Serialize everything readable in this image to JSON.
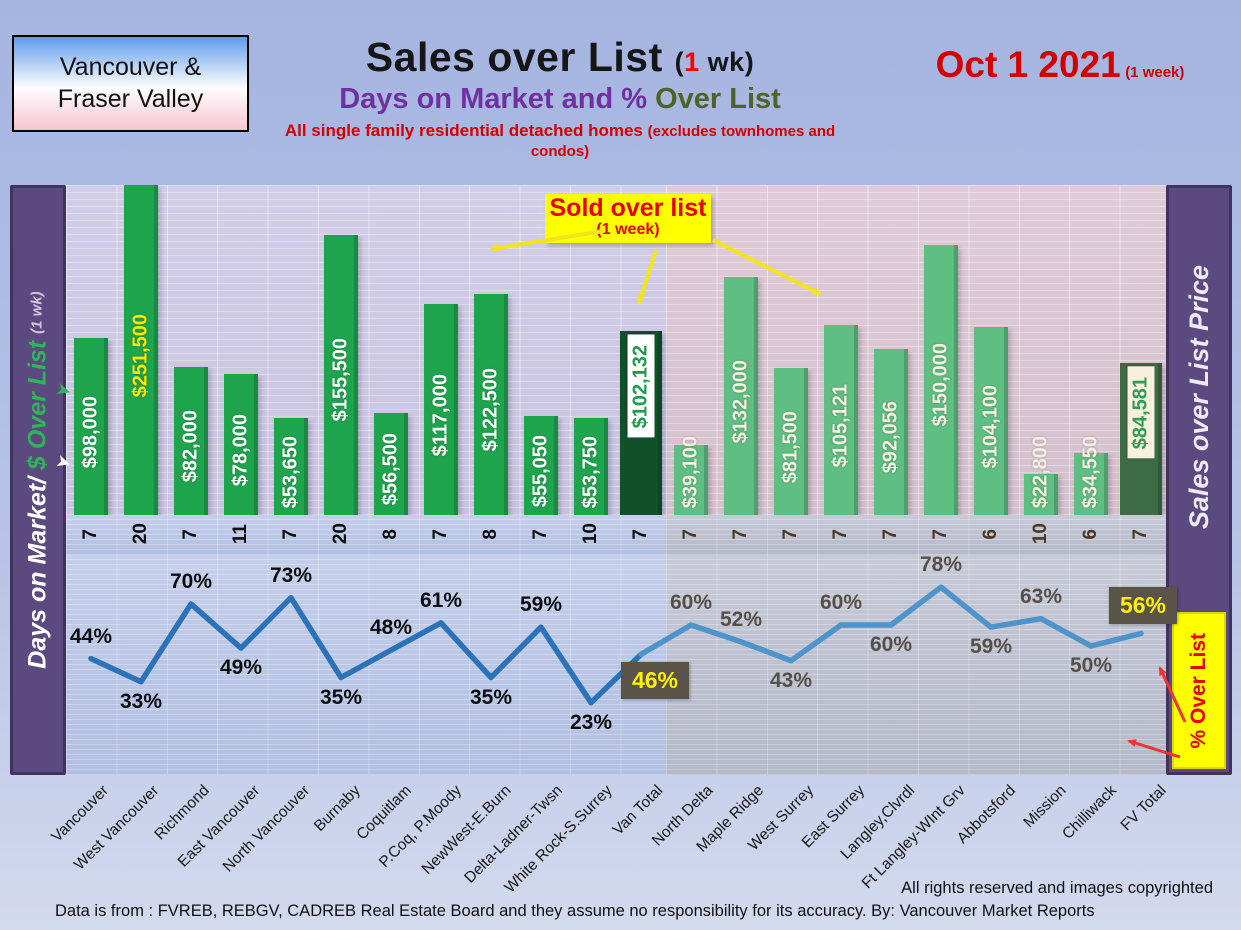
{
  "header": {
    "region_line1": "Vancouver &",
    "region_line2": "Fraser Valley",
    "title": "Sales over List",
    "title_wk_open": "(",
    "title_wk_num": "1",
    "title_wk_rest": " wk)",
    "subtitle_left": "Days on Market and % ",
    "subtitle_right": "Over List",
    "tagline": "All single family residential detached homes ",
    "tagline_paren": "(excludes townhomes and condos)",
    "date": "Oct 1  2021",
    "date_note": "(1 week)"
  },
  "left_axis": {
    "part1": "Days on Market/ ",
    "part2": "$ Over List ",
    "part3": "(1 wk)"
  },
  "right_axis": {
    "label": "Sales over List Price",
    "overlay_label": "% Over List"
  },
  "callout": {
    "line1": "Sold over list",
    "line2": "(1 week)"
  },
  "footer": {
    "rights": "All rights reserved and  images copyrighted",
    "source": "Data is from : FVREB, REBGV, CADREB Real Estate Board and they assume no responsibility for its accuracy. By: Vancouver Market Reports"
  },
  "chart_data": {
    "type": "bar",
    "title": "Sales over List (1 wk) — Days on Market and % Over List",
    "categories": [
      "Vancouver",
      "West Vancouver",
      "Richmond",
      "East Vancouver",
      "North Vancouver",
      "Burnaby",
      "Coquitlam",
      "P.Coq, P.Moody",
      "NewWest-E.Burn",
      "Delta-Ladner-Twsn",
      "White Rock-S.Surrey",
      "Van Total",
      "North Delta",
      "Maple Ridge",
      "West Surrey",
      "East Surrey",
      "Langley,Clvrdl",
      "Ft Langley-WInt Grv",
      "Abbotsford",
      "Mission",
      "Chilliwack",
      "FV Total"
    ],
    "series": [
      {
        "name": "$ Over List",
        "type": "bar",
        "values": [
          98000,
          251500,
          82000,
          78000,
          53650,
          155500,
          56500,
          117000,
          122500,
          55050,
          53750,
          102132,
          39100,
          132000,
          81500,
          105121,
          92056,
          150000,
          104100,
          22800,
          34550,
          84581
        ],
        "labels": [
          "$98,000",
          "$251,500",
          "$82,000",
          "$78,000",
          "$53,650",
          "$155,500",
          "$56,500",
          "$117,000",
          "$122,500",
          "$55,050",
          "$53,750",
          "$102,132",
          "$39,100",
          "$132,000",
          "$81,500",
          "$105,121",
          "$92,056",
          "$150,000",
          "$104,100",
          "$22,800",
          "$34,550",
          "$84,581"
        ],
        "label_styles": [
          "white",
          "yellow",
          "white",
          "white",
          "white",
          "white",
          "white",
          "white",
          "white",
          "white",
          "white",
          "chip-white",
          "fvwhite",
          "fvwhite",
          "fvwhite",
          "fvwhite",
          "fvwhite",
          "fvwhite",
          "fvwhite",
          "fvwhite",
          "fvwhite",
          "chip-cream"
        ]
      },
      {
        "name": "Days on Market",
        "type": "label-row",
        "values": [
          7,
          20,
          7,
          11,
          7,
          20,
          8,
          7,
          8,
          7,
          10,
          7,
          7,
          7,
          7,
          7,
          7,
          7,
          6,
          10,
          6,
          7
        ]
      },
      {
        "name": "% Over List",
        "type": "line",
        "values": [
          44,
          33,
          70,
          49,
          73,
          35,
          48,
          61,
          35,
          59,
          23,
          46,
          60,
          52,
          43,
          60,
          60,
          78,
          59,
          63,
          50,
          56
        ],
        "label_positions": [
          "above",
          "below",
          "above",
          "below",
          "above",
          "below",
          "above",
          "above",
          "below",
          "above",
          "below",
          "box-left",
          "above",
          "above",
          "below",
          "above",
          "below",
          "above",
          "below",
          "above",
          "below",
          "box-above"
        ]
      }
    ],
    "group_split": {
      "vancouver_columns": 12,
      "fraser_valley_columns": 10
    },
    "highlight_columns": [
      11,
      21
    ],
    "bar_axis_max": 183000,
    "line_axis": "percent",
    "legend": "none",
    "grid": true
  },
  "colors": {
    "van_bar": "#1fa44e",
    "fv_bar": "#5fbe81",
    "van_total_bar": "#10512a",
    "fv_total_bar": "#3d6b43",
    "line_van": "#2b72b8",
    "line_fv": "#4e93c9",
    "sidebar_purple": "#5b4a80",
    "highlight_box_bg": "#5a5347",
    "highlight_text": "#ffef00",
    "callout_bg": "#ffff00",
    "callout_text": "#e80000",
    "title_purple": "#7030a0",
    "title_olive": "#4f6228",
    "red_text": "#d40000"
  }
}
